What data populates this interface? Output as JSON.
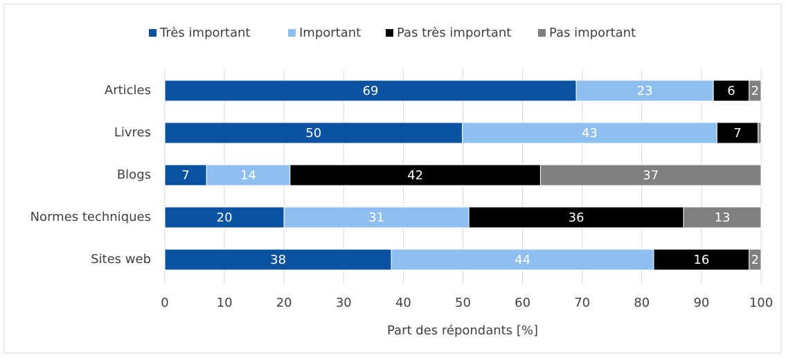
{
  "chart_data": {
    "type": "stacked-bar-horizontal",
    "categories": [
      "Articles",
      "Livres",
      "Blogs",
      "Normes techniques",
      "Sites web"
    ],
    "series": [
      {
        "name": "Très important",
        "color": "#0b52a0",
        "values": [
          69,
          49.9,
          7,
          20,
          38
        ],
        "value_labels": [
          "69",
          "50",
          "7",
          "20",
          "38"
        ]
      },
      {
        "name": "Important",
        "color": "#8fbfee",
        "values": [
          23,
          42.7,
          14,
          31,
          44
        ],
        "value_labels": [
          "23",
          "43",
          "14",
          "31",
          "44"
        ]
      },
      {
        "name": "Pas très important",
        "color": "#000000",
        "values": [
          6,
          6.9,
          42,
          36,
          16
        ],
        "value_labels": [
          "6",
          "7",
          "42",
          "36",
          "16"
        ]
      },
      {
        "name": "Pas important",
        "color": "#7f7f7f",
        "values": [
          2,
          0.5,
          37,
          13,
          2
        ],
        "value_labels": [
          "2",
          null,
          "37",
          "13",
          "2"
        ]
      }
    ],
    "xlabel": "Part des répondants [%]",
    "xlim": [
      0,
      100
    ],
    "xticks": [
      0,
      10,
      20,
      30,
      40,
      50,
      60,
      70,
      80,
      90,
      100
    ],
    "grid": true,
    "legend": "top"
  }
}
